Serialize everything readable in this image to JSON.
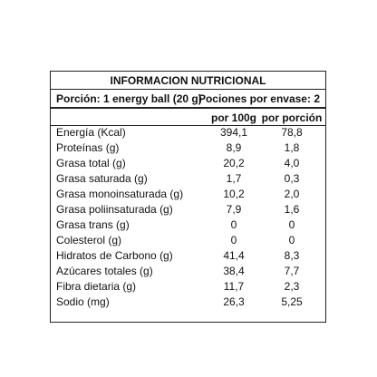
{
  "table": {
    "title": "INFORMACION NUTRICIONAL",
    "portion": "Porción: 1 energy ball (20 g)",
    "servings": "Pociones por envase: 2",
    "columns": [
      "por 100g",
      "por porción"
    ],
    "rows": [
      [
        "Energía (Kcal)",
        "394,1",
        "78,8"
      ],
      [
        "Proteínas (g)",
        "8,9",
        "1,8"
      ],
      [
        "Grasa total (g)",
        "20,2",
        "4,0"
      ],
      [
        "Grasa saturada (g)",
        "1,7",
        "0,3"
      ],
      [
        "Grasa monoinsaturada (g)",
        "10,2",
        "2,0"
      ],
      [
        "Grasa poliinsaturada (g)",
        "7,9",
        "1,6"
      ],
      [
        "Grasa trans (g)",
        "0",
        "0"
      ],
      [
        "Colesterol (g)",
        "0",
        "0"
      ],
      [
        "Hidratos de Carbono (g)",
        "41,4",
        "8,3"
      ],
      [
        "Azúcares totales (g)",
        "38,4",
        "7,7"
      ],
      [
        "Fibra dietaria (g)",
        "11,7",
        "2,3"
      ],
      [
        "Sodio (mg)",
        "26,3",
        "5,25"
      ]
    ]
  }
}
